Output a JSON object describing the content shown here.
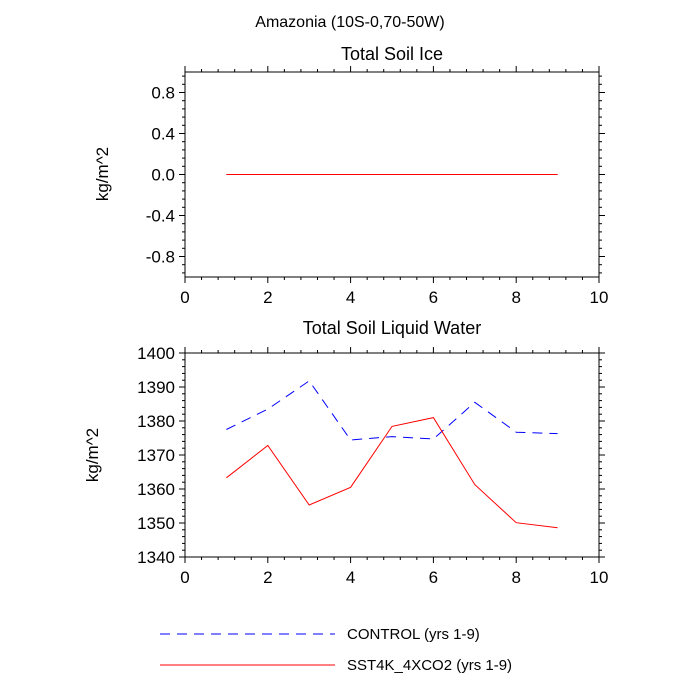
{
  "figure_title": "Amazonia (10S-0,70-50W)",
  "colors": {
    "control": "#0000ff",
    "sst4k": "#ff0000"
  },
  "legend": [
    {
      "label": "CONTROL (yrs 1-9)",
      "color": "#0000ff",
      "dash": "dashed"
    },
    {
      "label": "SST4K_4XCO2 (yrs 1-9)",
      "color": "#ff0000",
      "dash": "solid"
    }
  ],
  "chart_data": [
    {
      "type": "line",
      "title": "Total Soil Ice",
      "xlabel": "",
      "ylabel": "kg/m^2",
      "xlim": [
        0,
        10
      ],
      "ylim": [
        -1,
        1
      ],
      "xticks": [
        0,
        2,
        4,
        6,
        8,
        10
      ],
      "xtick_labels": [
        "0",
        "2",
        "4",
        "6",
        "8",
        "10"
      ],
      "yticks": [
        -0.8,
        -0.4,
        0.0,
        0.4,
        0.8
      ],
      "ytick_labels": [
        "-0.8",
        "-0.4",
        "0.0",
        "0.4",
        "0.8"
      ],
      "grid": false,
      "x": [
        1,
        2,
        3,
        4,
        5,
        6,
        7,
        8,
        9
      ],
      "series": [
        {
          "name": "CONTROL (yrs 1-9)",
          "color": "#0000ff",
          "dash": "dashed",
          "values": [
            0,
            0,
            0,
            0,
            0,
            0,
            0,
            0,
            0
          ]
        },
        {
          "name": "SST4K_4XCO2 (yrs 1-9)",
          "color": "#ff0000",
          "dash": "solid",
          "values": [
            0,
            0,
            0,
            0,
            0,
            0,
            0,
            0,
            0
          ]
        }
      ]
    },
    {
      "type": "line",
      "title": "Total Soil Liquid Water",
      "xlabel": "",
      "ylabel": "kg/m^2",
      "xlim": [
        0,
        10
      ],
      "ylim": [
        1340,
        1400
      ],
      "xticks": [
        0,
        2,
        4,
        6,
        8,
        10
      ],
      "xtick_labels": [
        "0",
        "2",
        "4",
        "6",
        "8",
        "10"
      ],
      "yticks": [
        1340,
        1350,
        1360,
        1370,
        1380,
        1390,
        1400
      ],
      "ytick_labels": [
        "1340",
        "1350",
        "1360",
        "1370",
        "1380",
        "1390",
        "1400"
      ],
      "grid": false,
      "x": [
        1,
        2,
        3,
        4,
        5,
        6,
        7,
        8,
        9
      ],
      "series": [
        {
          "name": "CONTROL (yrs 1-9)",
          "color": "#0000ff",
          "dash": "dashed",
          "values": [
            1377.5,
            1383.5,
            1391.8,
            1374.4,
            1375.4,
            1374.7,
            1385.5,
            1376.7,
            1376.3
          ]
        },
        {
          "name": "SST4K_4XCO2 (yrs 1-9)",
          "color": "#ff0000",
          "dash": "solid",
          "values": [
            1363.3,
            1372.8,
            1355.3,
            1360.5,
            1378.4,
            1381.0,
            1361.3,
            1350.1,
            1348.6
          ]
        }
      ]
    }
  ]
}
